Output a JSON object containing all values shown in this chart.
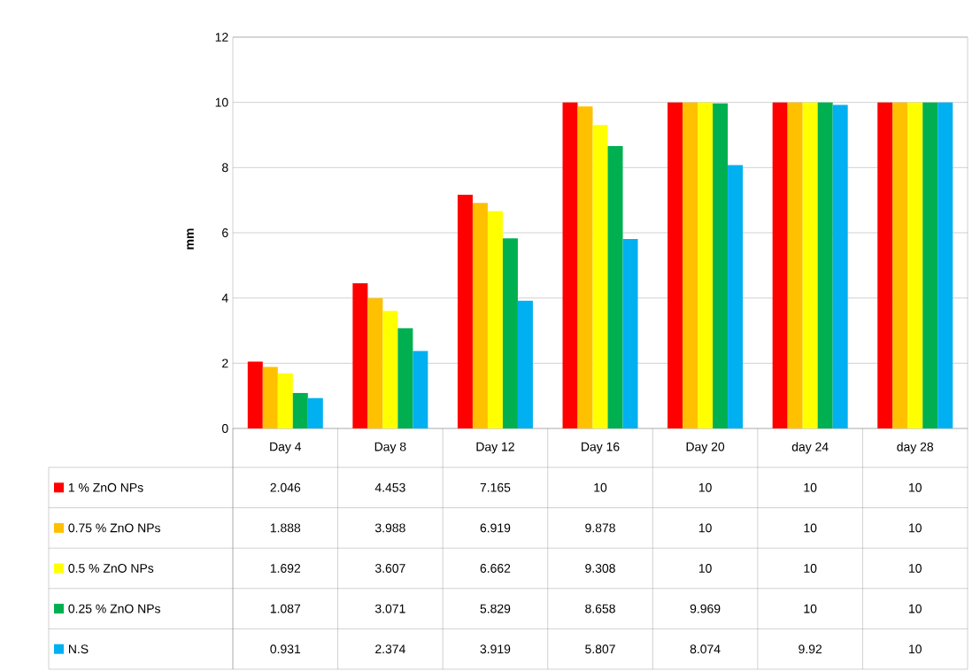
{
  "chart_data": {
    "type": "bar",
    "ylabel": "mm",
    "categories": [
      "Day 4",
      "Day 8",
      "Day 12",
      "Day 16",
      "Day 20",
      "day 24",
      "day 28"
    ],
    "series": [
      {
        "name": "1 % ZnO NPs",
        "color": "#ff0000",
        "values": [
          2.046,
          4.453,
          7.165,
          10,
          10,
          10,
          10
        ]
      },
      {
        "name": "0.75 % ZnO NPs",
        "color": "#ffc000",
        "values": [
          1.888,
          3.988,
          6.919,
          9.878,
          10,
          10,
          10
        ]
      },
      {
        "name": "0.5 % ZnO NPs",
        "color": "#ffff00",
        "values": [
          1.692,
          3.607,
          6.662,
          9.308,
          10,
          10,
          10
        ]
      },
      {
        "name": "0.25 % ZnO NPs",
        "color": "#00b050",
        "values": [
          1.087,
          3.071,
          5.829,
          8.658,
          9.969,
          10,
          10
        ]
      },
      {
        "name": "N.S",
        "color": "#00b0f0",
        "values": [
          0.931,
          2.374,
          3.919,
          5.807,
          8.074,
          9.92,
          10
        ]
      }
    ],
    "ylim": [
      0,
      12
    ],
    "yticks": [
      0,
      2,
      4,
      6,
      8,
      10,
      12
    ],
    "grid": "y",
    "legend": "bottom",
    "data_labels": true
  }
}
